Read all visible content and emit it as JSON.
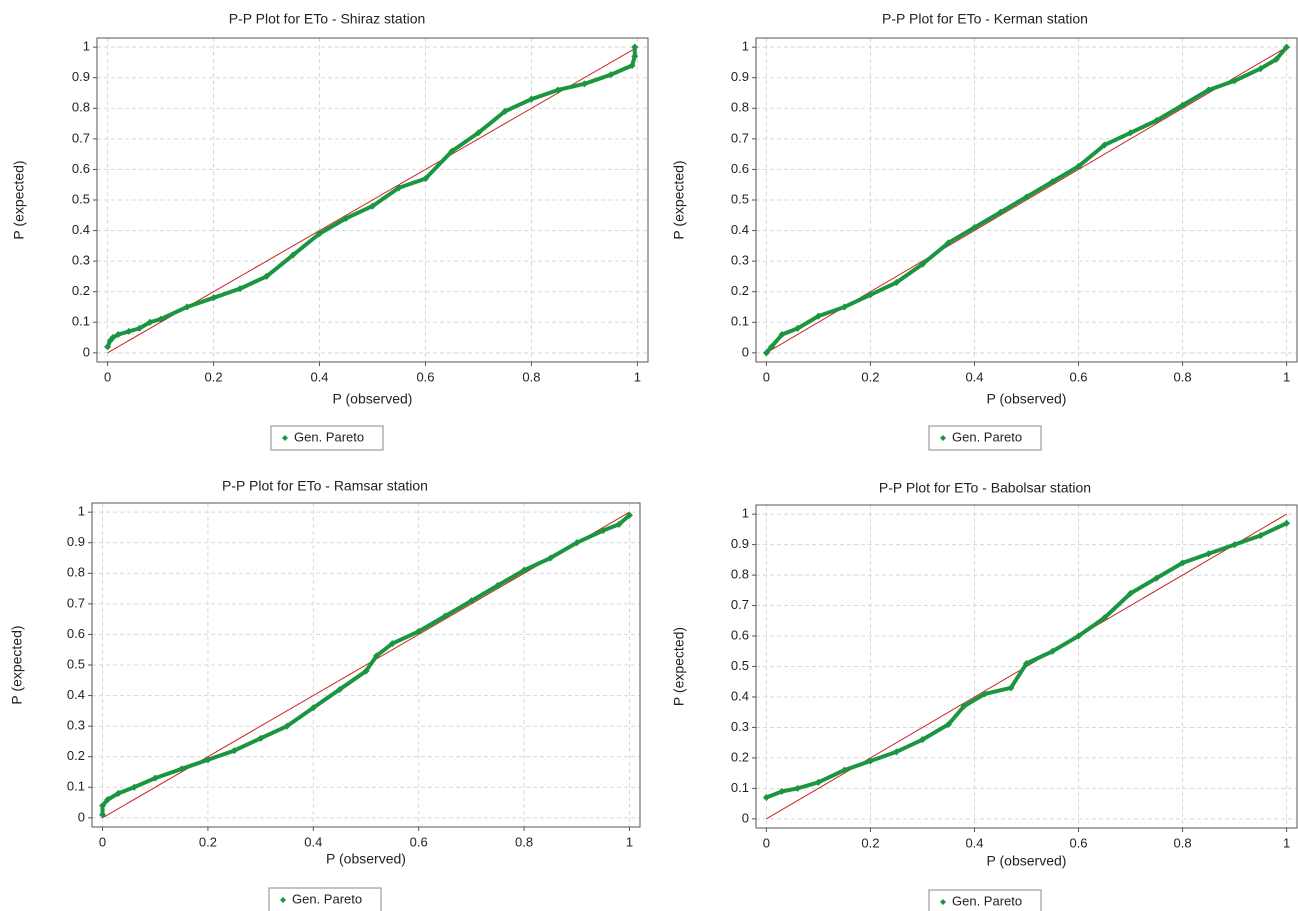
{
  "chart_data": [
    {
      "type": "scatter",
      "title": "P-P Plot for ETo - Shiraz station",
      "xlabel": "P (observed)",
      "ylabel": "P (expected)",
      "series": [
        {
          "name": "Gen. Pareto",
          "color": "#1a9641",
          "x": [
            0,
            0.005,
            0.01,
            0.02,
            0.04,
            0.06,
            0.08,
            0.1,
            0.15,
            0.2,
            0.25,
            0.3,
            0.35,
            0.4,
            0.45,
            0.5,
            0.55,
            0.6,
            0.65,
            0.7,
            0.75,
            0.8,
            0.85,
            0.9,
            0.95,
            0.99,
            0.995,
            0.995
          ],
          "y": [
            0.02,
            0.04,
            0.05,
            0.06,
            0.07,
            0.08,
            0.1,
            0.11,
            0.15,
            0.18,
            0.21,
            0.25,
            0.32,
            0.39,
            0.44,
            0.48,
            0.54,
            0.57,
            0.66,
            0.72,
            0.79,
            0.83,
            0.86,
            0.88,
            0.91,
            0.94,
            0.97,
            1.0
          ]
        }
      ],
      "xlim": [
        -0.02,
        1.02
      ],
      "ylim": [
        -0.03,
        1.03
      ],
      "xticks": [
        0,
        0.2,
        0.4,
        0.6,
        0.8,
        1
      ],
      "yticks": [
        0,
        0.1,
        0.2,
        0.3,
        0.4,
        0.5,
        0.6,
        0.7,
        0.8,
        0.9,
        1
      ],
      "grid": true,
      "diagonal": true,
      "diagonal_color": "#cc2222"
    },
    {
      "type": "scatter",
      "title": "P-P Plot for ETo - Kerman station",
      "xlabel": "P (observed)",
      "ylabel": "P (expected)",
      "series": [
        {
          "name": "Gen. Pareto",
          "color": "#1a9641",
          "x": [
            0,
            0.01,
            0.03,
            0.06,
            0.1,
            0.15,
            0.2,
            0.25,
            0.3,
            0.35,
            0.4,
            0.45,
            0.5,
            0.55,
            0.6,
            0.65,
            0.7,
            0.75,
            0.8,
            0.85,
            0.9,
            0.95,
            0.98,
            1.0
          ],
          "y": [
            0,
            0.02,
            0.06,
            0.08,
            0.12,
            0.15,
            0.19,
            0.23,
            0.29,
            0.36,
            0.41,
            0.46,
            0.51,
            0.56,
            0.61,
            0.68,
            0.72,
            0.76,
            0.81,
            0.86,
            0.89,
            0.93,
            0.96,
            1.0
          ]
        }
      ],
      "xlim": [
        -0.02,
        1.02
      ],
      "ylim": [
        -0.03,
        1.03
      ],
      "xticks": [
        0,
        0.2,
        0.4,
        0.6,
        0.8,
        1
      ],
      "yticks": [
        0,
        0.1,
        0.2,
        0.3,
        0.4,
        0.5,
        0.6,
        0.7,
        0.8,
        0.9,
        1
      ],
      "grid": true,
      "diagonal": true,
      "diagonal_color": "#cc2222"
    },
    {
      "type": "scatter",
      "title": "P-P Plot for ETo - Ramsar station",
      "xlabel": "P (observed)",
      "ylabel": "P (expected)",
      "series": [
        {
          "name": "Gen. Pareto",
          "color": "#1a9641",
          "x": [
            0,
            0,
            0.01,
            0.03,
            0.06,
            0.1,
            0.15,
            0.2,
            0.25,
            0.3,
            0.35,
            0.4,
            0.45,
            0.5,
            0.52,
            0.55,
            0.6,
            0.65,
            0.7,
            0.75,
            0.8,
            0.85,
            0.9,
            0.95,
            0.98,
            1.0
          ],
          "y": [
            0.01,
            0.04,
            0.06,
            0.08,
            0.1,
            0.13,
            0.16,
            0.19,
            0.22,
            0.26,
            0.3,
            0.36,
            0.42,
            0.48,
            0.53,
            0.57,
            0.61,
            0.66,
            0.71,
            0.76,
            0.81,
            0.85,
            0.9,
            0.94,
            0.96,
            0.99
          ]
        }
      ],
      "xlim": [
        -0.02,
        1.02
      ],
      "ylim": [
        -0.03,
        1.03
      ],
      "xticks": [
        0,
        0.2,
        0.4,
        0.6,
        0.8,
        1
      ],
      "yticks": [
        0,
        0.1,
        0.2,
        0.3,
        0.4,
        0.5,
        0.6,
        0.7,
        0.8,
        0.9,
        1
      ],
      "grid": true,
      "diagonal": true,
      "diagonal_color": "#cc2222"
    },
    {
      "type": "scatter",
      "title": "P-P Plot for ETo - Babolsar station",
      "xlabel": "P (observed)",
      "ylabel": "P (expected)",
      "series": [
        {
          "name": "Gen. Pareto",
          "color": "#1a9641",
          "x": [
            0,
            0.03,
            0.06,
            0.1,
            0.15,
            0.2,
            0.25,
            0.3,
            0.35,
            0.38,
            0.42,
            0.47,
            0.5,
            0.55,
            0.6,
            0.65,
            0.7,
            0.75,
            0.8,
            0.85,
            0.9,
            0.95,
            1.0
          ],
          "y": [
            0.07,
            0.09,
            0.1,
            0.12,
            0.16,
            0.19,
            0.22,
            0.26,
            0.31,
            0.37,
            0.41,
            0.43,
            0.51,
            0.55,
            0.6,
            0.66,
            0.74,
            0.79,
            0.84,
            0.87,
            0.9,
            0.93,
            0.97
          ]
        }
      ],
      "xlim": [
        -0.02,
        1.02
      ],
      "ylim": [
        -0.03,
        1.03
      ],
      "xticks": [
        0,
        0.2,
        0.4,
        0.6,
        0.8,
        1
      ],
      "yticks": [
        0,
        0.1,
        0.2,
        0.3,
        0.4,
        0.5,
        0.6,
        0.7,
        0.8,
        0.9,
        1
      ],
      "grid": true,
      "diagonal": true,
      "diagonal_color": "#cc2222"
    }
  ]
}
